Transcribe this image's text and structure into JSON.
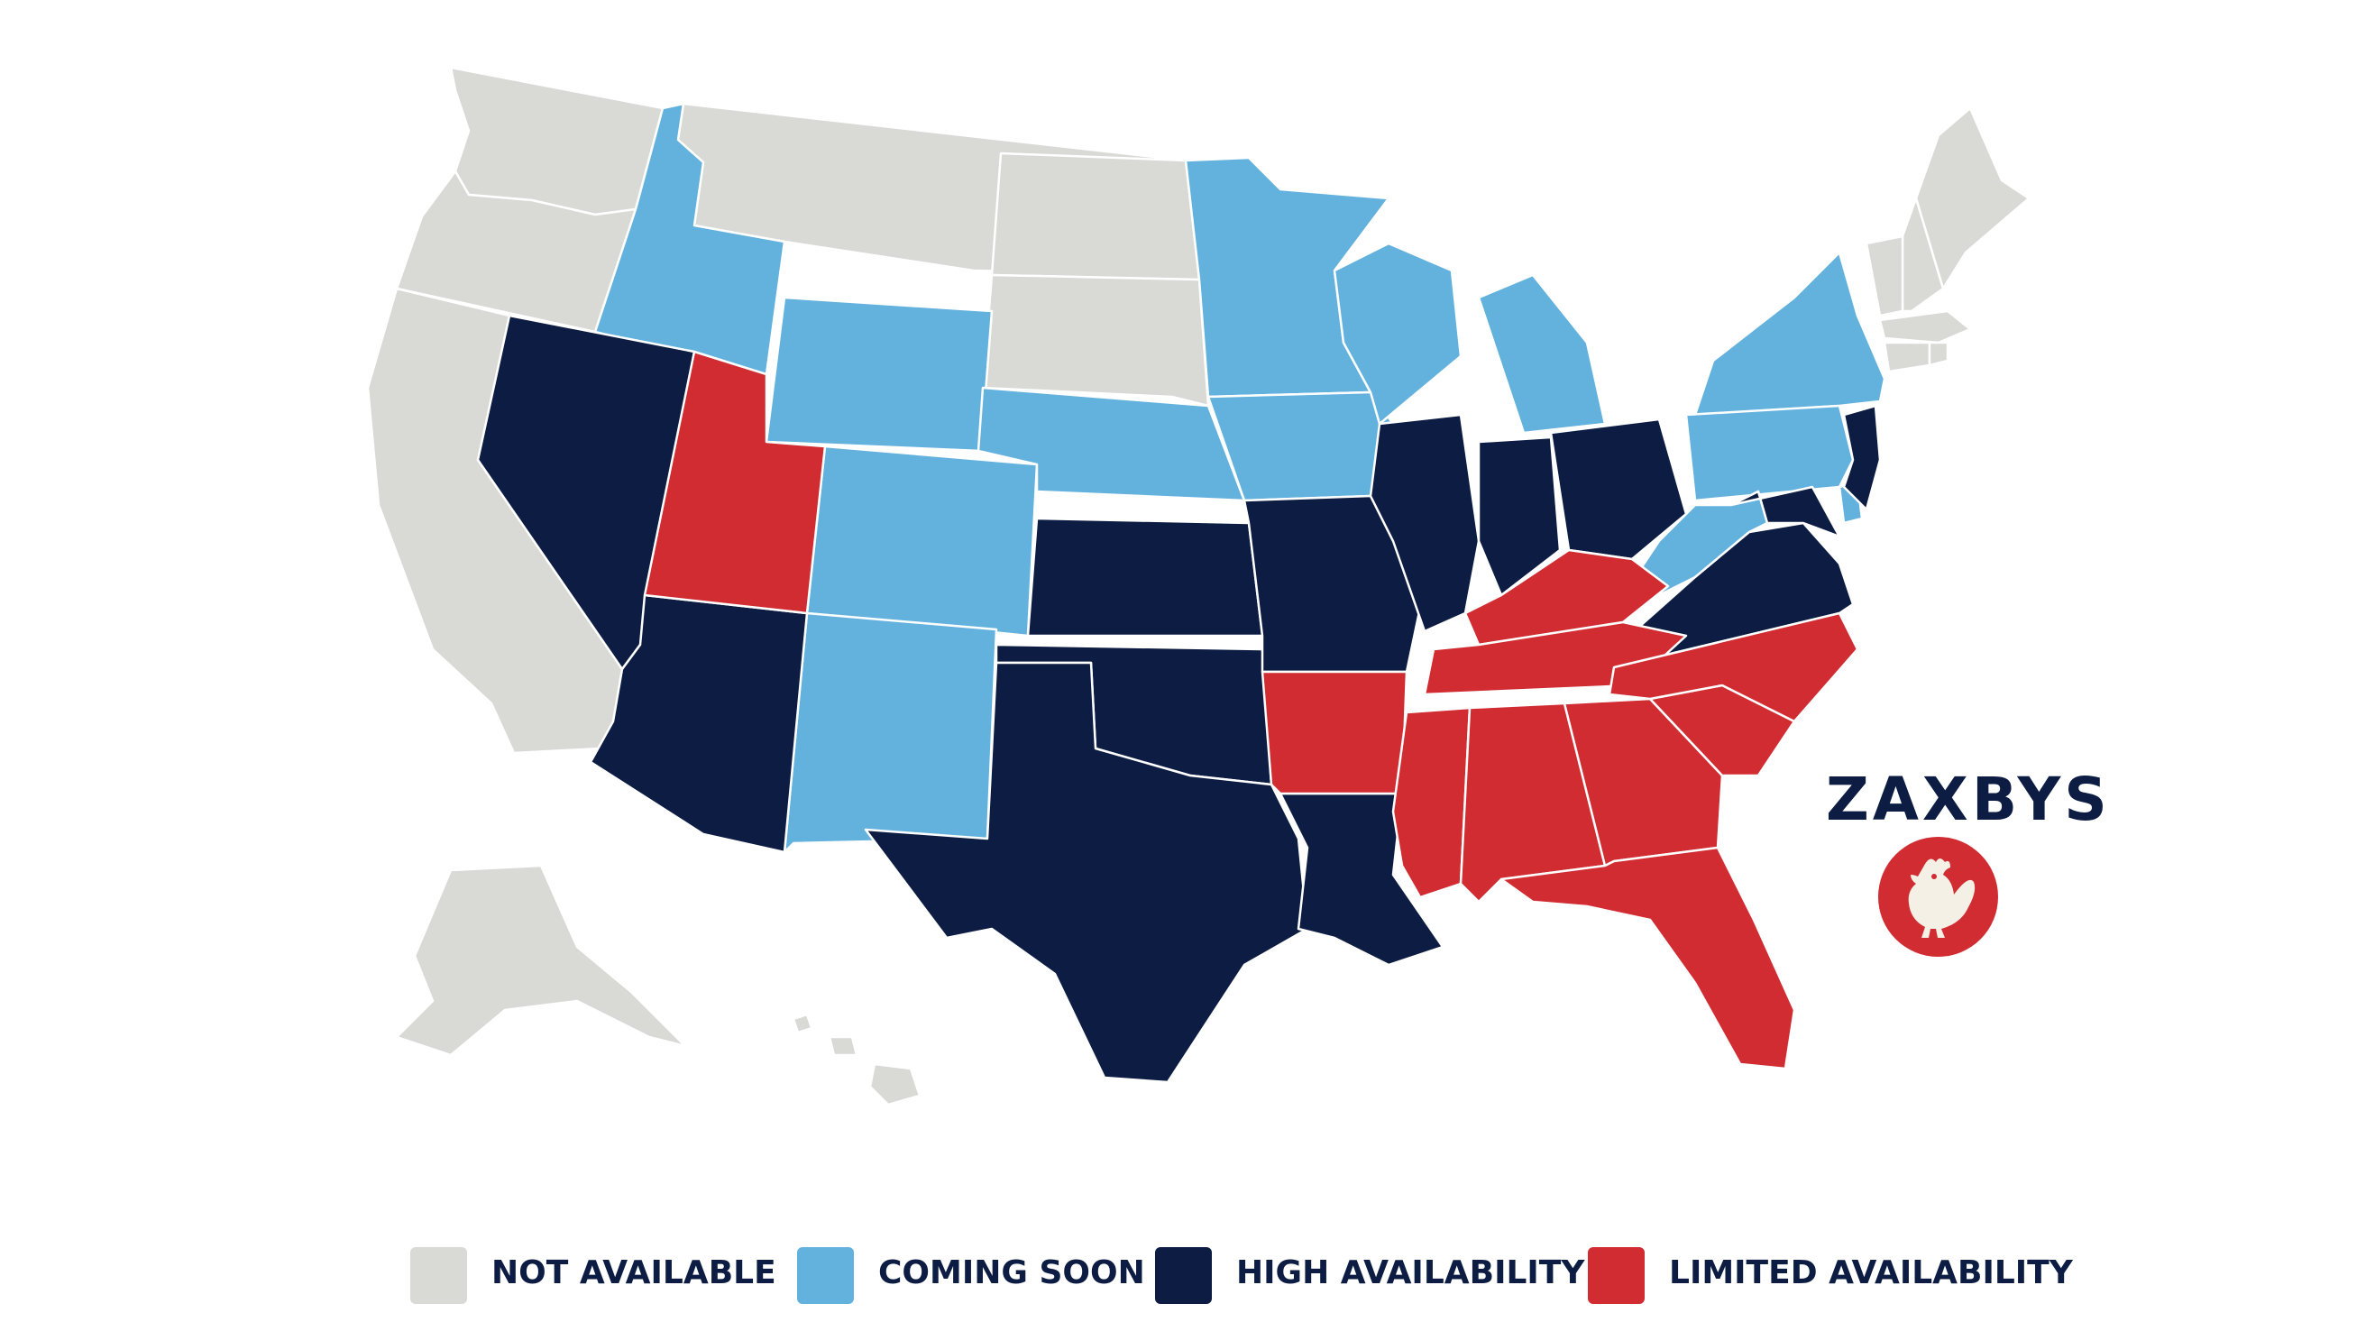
{
  "colors": {
    "not_available": "#d9d9d6",
    "coming_soon": "#63b2de",
    "high_availability": "#0c1c42",
    "limited_availability": "#d12c32",
    "brand_red": "#d12c32",
    "brand_cream": "#f5f0e6"
  },
  "brand": {
    "wordmark": "ZAXBYS",
    "badge_icon": "rooster-icon"
  },
  "legend": [
    {
      "key": "not_available",
      "label": "NOT AVAILABLE"
    },
    {
      "key": "coming_soon",
      "label": "COMING SOON"
    },
    {
      "key": "high_availability",
      "label": "HIGH AVAILABILITY"
    },
    {
      "key": "limited_availability",
      "label": "LIMITED AVAILABILITY"
    }
  ],
  "states": {
    "not_available": [
      "WA",
      "OR",
      "CA",
      "MT",
      "ND",
      "SD",
      "AK",
      "HI",
      "ME",
      "NH",
      "VT",
      "MA",
      "CT",
      "RI"
    ],
    "coming_soon": [
      "ID",
      "WY",
      "CO",
      "NM",
      "NE",
      "MN",
      "IA",
      "WI",
      "MI",
      "NY",
      "PA",
      "WV",
      "DE"
    ],
    "high_availability": [
      "NV",
      "AZ",
      "KS",
      "OK",
      "TX",
      "MO",
      "LA",
      "IL",
      "IN",
      "OH",
      "VA",
      "MD",
      "NJ"
    ],
    "limited_availability": [
      "UT",
      "AR",
      "KY",
      "TN",
      "MS",
      "AL",
      "GA",
      "FL",
      "SC",
      "NC"
    ]
  }
}
